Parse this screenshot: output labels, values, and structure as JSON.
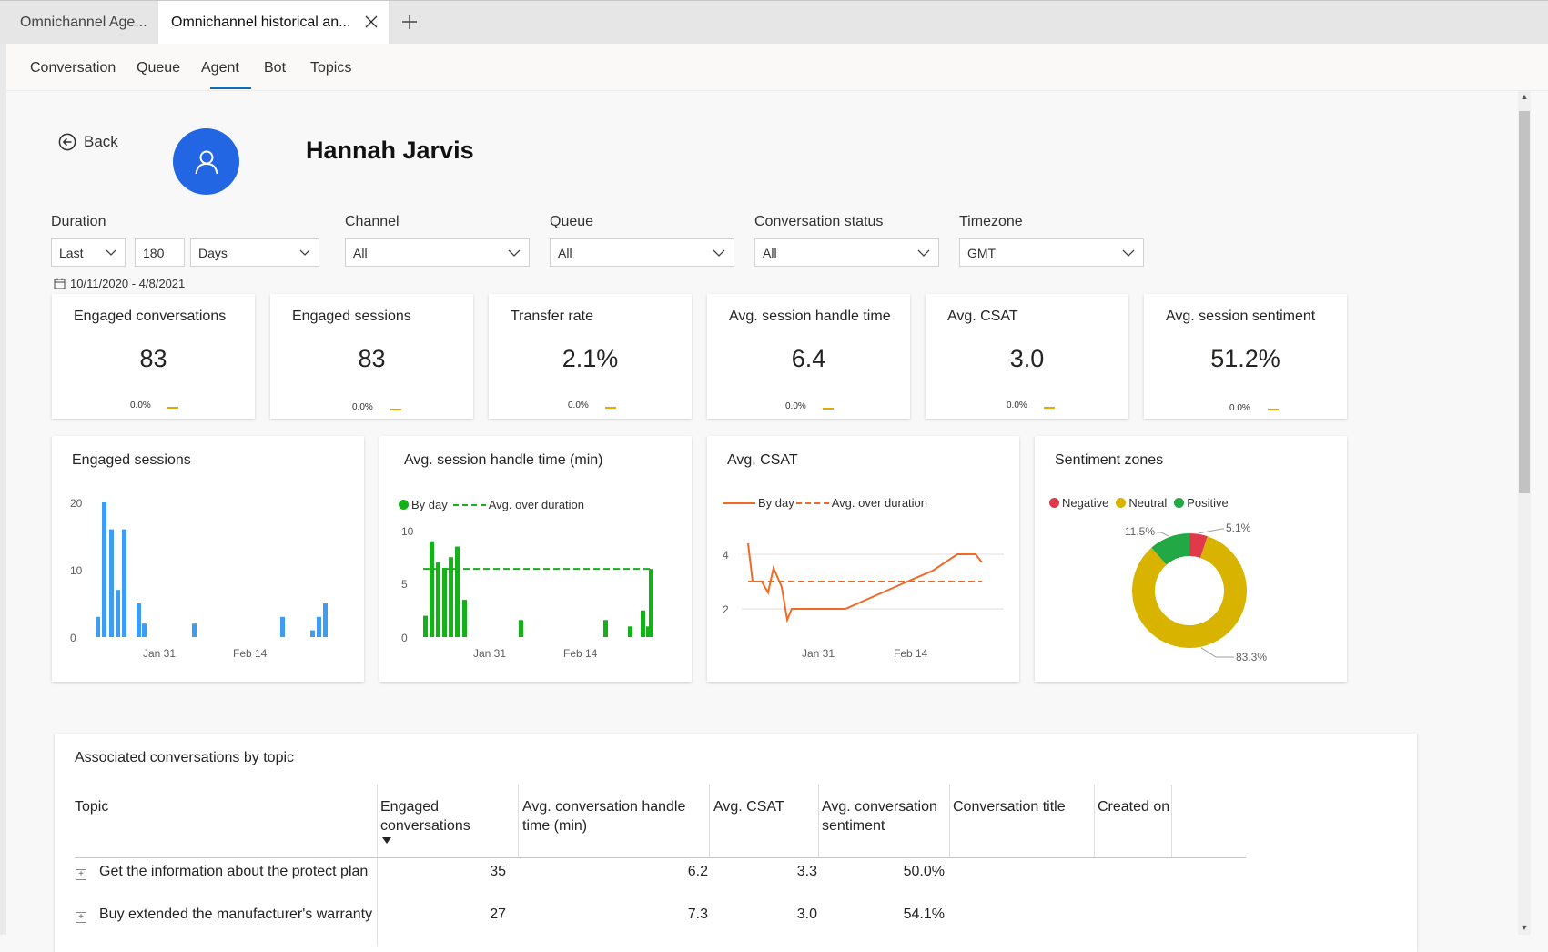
{
  "browser_tabs": [
    {
      "label": "Omnichannel Age..."
    },
    {
      "label": "Omnichannel historical an..."
    }
  ],
  "nav": {
    "items": [
      "Conversation",
      "Queue",
      "Agent",
      "Bot",
      "Topics"
    ],
    "active": "Agent"
  },
  "header": {
    "back_label": "Back",
    "agent_name": "Hannah Jarvis"
  },
  "filters": {
    "duration_label": "Duration",
    "duration_mode": "Last",
    "duration_count": "180",
    "duration_unit": "Days",
    "channel_label": "Channel",
    "channel_value": "All",
    "queue_label": "Queue",
    "queue_value": "All",
    "status_label": "Conversation status",
    "status_value": "All",
    "timezone_label": "Timezone",
    "timezone_value": "GMT",
    "date_range": "10/11/2020 - 4/8/2021"
  },
  "kpis": [
    {
      "title": "Engaged conversations",
      "value": "83",
      "trend": "0.0%"
    },
    {
      "title": "Engaged sessions",
      "value": "83",
      "trend": "0.0%"
    },
    {
      "title": "Transfer rate",
      "value": "2.1%",
      "trend": "0.0%"
    },
    {
      "title": "Avg. session handle time",
      "value": "6.4",
      "trend": "0.0%"
    },
    {
      "title": "Avg. CSAT",
      "value": "3.0",
      "trend": "0.0%"
    },
    {
      "title": "Avg. session sentiment",
      "value": "51.2%",
      "trend": "0.0%"
    }
  ],
  "colors": {
    "accent": "#0f6cbd",
    "avatar": "#2266e3",
    "bar_blue": "#3e9cf3",
    "bar_green": "#16b01a",
    "line_orange": "#f06a25",
    "negative": "#e0394b",
    "neutral": "#d8b400",
    "positive": "#22a845",
    "trend_dash": "#e8a800"
  },
  "chart_data": [
    {
      "type": "bar",
      "title": "Engaged sessions",
      "ylim": [
        0,
        20
      ],
      "yticks": [
        "20",
        "10",
        "0"
      ],
      "xtick_labels": [
        "Jan 31",
        "Feb 14"
      ],
      "series": [
        {
          "values": [
            3,
            20,
            16,
            7,
            16,
            5,
            2,
            2,
            3,
            1,
            3,
            5
          ]
        }
      ]
    },
    {
      "type": "bar",
      "title": "Avg. session handle time (min)",
      "ylim": [
        0,
        10
      ],
      "yticks": [
        "10",
        "5",
        "0"
      ],
      "xtick_labels": [
        "Jan 31",
        "Feb 14"
      ],
      "legend": [
        "By day",
        "Avg. over duration"
      ],
      "series": [
        {
          "name": "By day",
          "values": [
            2,
            9,
            7,
            6.5,
            7.5,
            8.5,
            3.5,
            1.6,
            1.6,
            1,
            2.5,
            1,
            6.4
          ]
        },
        {
          "name": "Avg. over duration",
          "values": [
            6.4
          ]
        }
      ]
    },
    {
      "type": "line",
      "title": "Avg. CSAT",
      "yticks": [
        "4",
        "2"
      ],
      "xtick_labels": [
        "Jan 31",
        "Feb 14"
      ],
      "legend": [
        "By day",
        "Avg. over duration"
      ],
      "series": [
        {
          "name": "By day",
          "values": [
            4.4,
            3,
            3,
            2.6,
            3.5,
            2.8,
            1.6,
            2,
            2,
            2,
            3,
            3.4,
            4,
            4,
            3.7
          ]
        },
        {
          "name": "Avg. over duration",
          "values": [
            3.0
          ]
        }
      ]
    },
    {
      "type": "pie",
      "title": "Sentiment zones",
      "legend": [
        "Negative",
        "Neutral",
        "Positive"
      ],
      "categories": [
        "Negative",
        "Neutral",
        "Positive"
      ],
      "values": [
        5.1,
        83.3,
        11.5
      ],
      "labels": [
        "5.1%",
        "83.3%",
        "11.5%"
      ]
    }
  ],
  "table": {
    "title": "Associated conversations by topic",
    "headers": [
      "Topic",
      "Engaged conversations",
      "Avg. conversation handle time (min)",
      "Avg. CSAT",
      "Avg. conversation sentiment",
      "Conversation title",
      "Created on"
    ],
    "rows": [
      {
        "topic": "Get the information about the protect plan",
        "engaged": "35",
        "handle": "6.2",
        "csat": "3.3",
        "sentiment": "50.0%"
      },
      {
        "topic": "Buy extended the manufacturer's warranty",
        "engaged": "27",
        "handle": "7.3",
        "csat": "3.0",
        "sentiment": "54.1%"
      }
    ]
  }
}
